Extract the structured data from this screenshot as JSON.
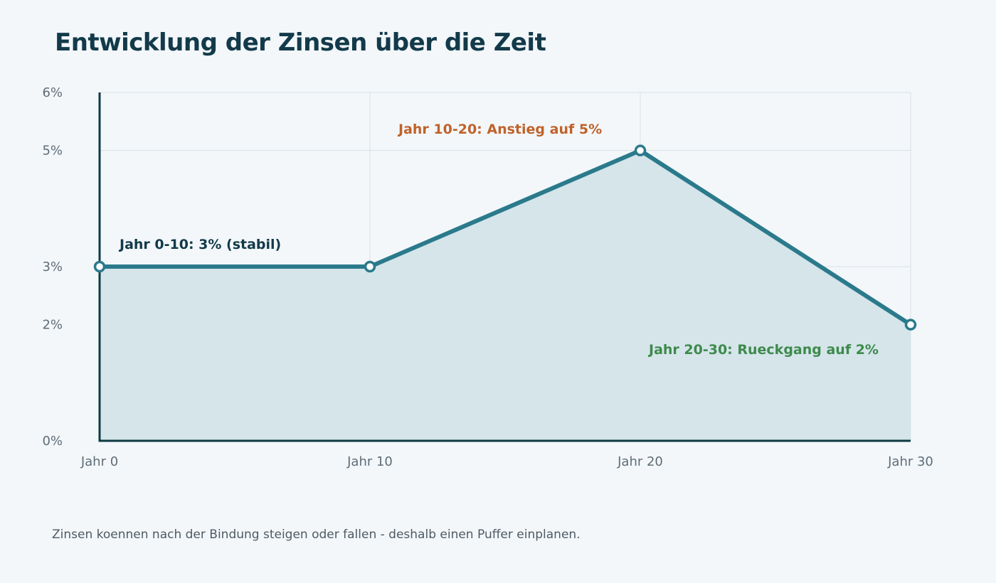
{
  "title": "Entwicklung der Zinsen über die Zeit",
  "caption": "Zinsen koennen nach der Bindung steigen oder fallen - deshalb einen Puffer einplanen.",
  "colors": {
    "line": "#2b7a8c",
    "area": "#d5e5ea",
    "axis": "#0f3a44",
    "grid": "#d9e1e6",
    "background": "#f3f7fa",
    "anno_stable": "#123a4a",
    "anno_rise": "#c0622a",
    "anno_fall": "#3e8a4c"
  },
  "chart_data": {
    "type": "area",
    "x": [
      0,
      10,
      20,
      30
    ],
    "x_tick_labels": [
      "Jahr 0",
      "Jahr 10",
      "Jahr 20",
      "Jahr 30"
    ],
    "series": [
      {
        "values": [
          3,
          3,
          5,
          2
        ]
      }
    ],
    "y_ticks": [
      0,
      2,
      3,
      5,
      6
    ],
    "y_tick_labels": [
      "0%",
      "2%",
      "3%",
      "5%",
      "6%"
    ],
    "xlim": [
      0,
      30
    ],
    "ylim": [
      0,
      6
    ],
    "grid": true,
    "annotations": [
      {
        "text": "Jahr 0-10: 3% (stabil)",
        "tone": "anno_stable"
      },
      {
        "text": "Jahr 10-20: Anstieg auf 5%",
        "tone": "anno_rise"
      },
      {
        "text": "Jahr 20-30: Rueckgang auf 2%",
        "tone": "anno_fall"
      }
    ]
  }
}
